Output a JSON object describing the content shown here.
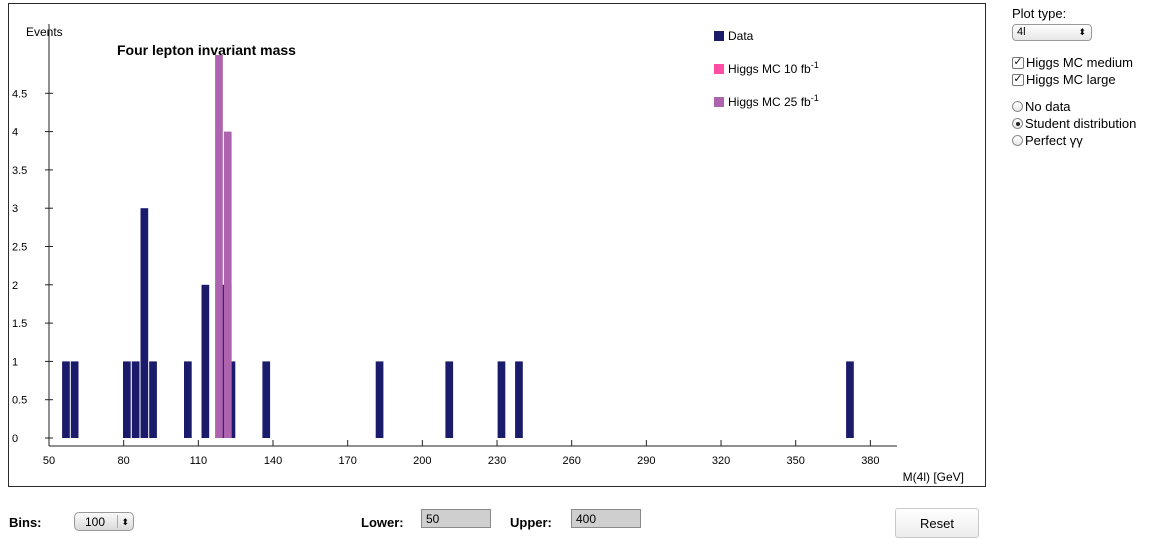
{
  "plot": {
    "title": "Four lepton invariant mass",
    "ylabel": "Events",
    "xlabel": "M(4l) [GeV]",
    "legend": [
      {
        "label": "Data",
        "color": "#1b1b6b"
      },
      {
        "label": "Higgs MC 10 fb",
        "sup": "-1",
        "color": "#ff4da6"
      },
      {
        "label": "Higgs MC 25 fb",
        "sup": "-1",
        "color": "#ae63ae"
      }
    ]
  },
  "chart_data": {
    "type": "bar",
    "title": "Four lepton invariant mass",
    "xlabel": "M(4l) [GeV]",
    "ylabel": "Events",
    "xlim": [
      50,
      400
    ],
    "ylim": [
      0,
      5
    ],
    "bin_width": 3.5,
    "x_ticks": [
      "50",
      "80",
      "110",
      "140",
      "170",
      "200",
      "230",
      "260",
      "290",
      "320",
      "350",
      "380"
    ],
    "y_ticks": [
      "0",
      "0.5",
      "1",
      "1.5",
      "2",
      "2.5",
      "3",
      "3.5",
      "4",
      "4.5"
    ],
    "series": [
      {
        "name": "Data",
        "color": "#1b1b6b",
        "points": [
          {
            "x": 57,
            "y": 1
          },
          {
            "x": 60.5,
            "y": 1
          },
          {
            "x": 81.5,
            "y": 1
          },
          {
            "x": 85,
            "y": 1
          },
          {
            "x": 88.5,
            "y": 3
          },
          {
            "x": 92,
            "y": 1
          },
          {
            "x": 106,
            "y": 1
          },
          {
            "x": 113,
            "y": 2
          },
          {
            "x": 120,
            "y": 2
          },
          {
            "x": 123.5,
            "y": 1
          },
          {
            "x": 137.5,
            "y": 1
          },
          {
            "x": 183,
            "y": 1
          },
          {
            "x": 211,
            "y": 1
          },
          {
            "x": 232,
            "y": 1
          },
          {
            "x": 239,
            "y": 1
          },
          {
            "x": 372,
            "y": 1
          }
        ]
      },
      {
        "name": "Higgs MC 10 fb-1",
        "color": "#ff4da6",
        "points": [
          {
            "x": 122,
            "y": 2
          }
        ]
      },
      {
        "name": "Higgs MC 25 fb-1",
        "color": "#ae63ae",
        "points": [
          {
            "x": 118.5,
            "y": 5
          },
          {
            "x": 122,
            "y": 4
          }
        ]
      }
    ]
  },
  "controls": {
    "plot_type_label": "Plot type:",
    "plot_type_value": "4l",
    "checkboxes": [
      {
        "label": "Higgs MC medium",
        "checked": true
      },
      {
        "label": "Higgs MC large",
        "checked": true
      }
    ],
    "radios": [
      {
        "label": "No data",
        "selected": false
      },
      {
        "label": "Student distribution",
        "selected": true
      },
      {
        "label": "Perfect γγ",
        "selected": false
      }
    ]
  },
  "bottom": {
    "bins_label": "Bins:",
    "bins_value": "100",
    "lower_label": "Lower:",
    "lower_value": "50",
    "upper_label": "Upper:",
    "upper_value": "400",
    "reset_label": "Reset"
  }
}
